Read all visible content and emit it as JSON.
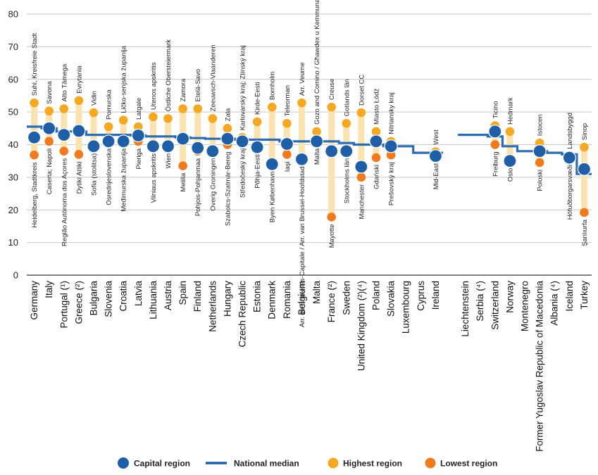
{
  "chart_data": {
    "type": "scatter",
    "ylim": [
      0,
      80
    ],
    "yticks": [
      0,
      10,
      20,
      30,
      40,
      50,
      60,
      70,
      80
    ],
    "grid": true,
    "legend": [
      {
        "key": "capital",
        "label": "Capital region",
        "color": "#1f5fa8"
      },
      {
        "key": "median",
        "label": "National median",
        "color": "#1f5fa8"
      },
      {
        "key": "highest",
        "label": "Highest region",
        "color": "#f7a823"
      },
      {
        "key": "lowest",
        "label": "Lowest region",
        "color": "#ef7b1e"
      }
    ],
    "colors": {
      "capital": "#1f5fa8",
      "median": "#2b6cb3",
      "highest": "#f7a823",
      "lowest": "#ef7b1e",
      "range": "#fbe3b0",
      "grid": "#c9c9c9"
    },
    "countries": [
      {
        "name": "Germany",
        "capital": 42.2,
        "median": 45.5,
        "high": 52.8,
        "low": 36.8,
        "high_label": "Suhl, Kreisfreie Stadt",
        "low_label": "Heidelberg, Stadtkreis"
      },
      {
        "name": "Italy",
        "capital": 45.0,
        "median": 45.0,
        "high": 50.3,
        "low": 41.0,
        "high_label": "Savona",
        "low_label": "Caserta; Napoli"
      },
      {
        "name": "Portugal (¹)",
        "capital": 43.0,
        "median": 44.0,
        "high": 51.0,
        "low": 38.0,
        "high_label": "Alto Tâmega",
        "low_label": "Região Autónoma dos Açores"
      },
      {
        "name": "Greece (²)",
        "capital": 44.2,
        "median": 44.0,
        "high": 53.5,
        "low": 37.0,
        "high_label": "Evrytania",
        "low_label": "Dytiki Attiki"
      },
      {
        "name": "Bulgaria",
        "capital": 39.5,
        "median": 43.0,
        "high": 49.8,
        "low": 39.5,
        "high_label": "Vidin",
        "low_label": "Sofia (stolitsa)"
      },
      {
        "name": "Slovenia",
        "capital": 41.0,
        "median": 43.0,
        "high": 45.5,
        "low": 41.0,
        "high_label": "Pomurska",
        "low_label": "Osrednjeslovenska"
      },
      {
        "name": "Croatia",
        "capital": 41.0,
        "median": 43.0,
        "high": 47.5,
        "low": 41.0,
        "high_label": "Ličko-senjska županija",
        "low_label": "Međimurska županija"
      },
      {
        "name": "Latvia",
        "capital": 42.8,
        "median": 42.8,
        "high": 45.5,
        "low": 41.0,
        "high_label": "Latgale",
        "low_label": "Pieriga"
      },
      {
        "name": "Lithuania",
        "capital": 39.5,
        "median": 42.5,
        "high": 48.5,
        "low": 39.5,
        "high_label": "Utenos apskritis",
        "low_label": "Vilniaus apskritis"
      },
      {
        "name": "Austria",
        "capital": 39.5,
        "median": 42.5,
        "high": 48.0,
        "low": 39.5,
        "high_label": "Östliche Obersteiermark",
        "low_label": "Wien"
      },
      {
        "name": "Spain",
        "capital": 41.8,
        "median": 42.2,
        "high": 51.0,
        "low": 33.5,
        "high_label": "Zamora",
        "low_label": "Melilla"
      },
      {
        "name": "Finland",
        "capital": 39.0,
        "median": 42.0,
        "high": 51.0,
        "low": 38.0,
        "high_label": "Etelä-Savo",
        "low_label": "Pohjois-Pohjanmaa"
      },
      {
        "name": "Netherlands",
        "capital": 38.0,
        "median": 41.8,
        "high": 48.0,
        "low": 38.0,
        "high_label": "Zeeuwsch-Vlaanderen",
        "low_label": "Overig Groningen"
      },
      {
        "name": "Hungary",
        "capital": 41.8,
        "median": 41.8,
        "high": 45.0,
        "low": 40.0,
        "high_label": "Zala",
        "low_label": "Szabolcs-Szatmár-Bereg"
      },
      {
        "name": "Czech Republic",
        "capital": 41.0,
        "median": 41.5,
        "high": 42.2,
        "low": 41.0,
        "high_label": "Karlovarský kraj; Zlínský kraj",
        "low_label": "Středočeský kraj"
      },
      {
        "name": "Estonia",
        "capital": 39.2,
        "median": 41.5,
        "high": 47.0,
        "low": 39.2,
        "high_label": "Kirde-Eesti",
        "low_label": "Põhja-Eesti"
      },
      {
        "name": "Denmark",
        "capital": 34.0,
        "median": 41.5,
        "high": 51.5,
        "low": 34.0,
        "high_label": "Bornholm",
        "low_label": "Byen København"
      },
      {
        "name": "Romania",
        "capital": 40.2,
        "median": 41.0,
        "high": 46.5,
        "low": 37.0,
        "high_label": "Teleorman",
        "low_label": "Iaşi"
      },
      {
        "name": "Belgium",
        "capital": 35.5,
        "median": 41.0,
        "high": 52.8,
        "low": 35.5,
        "high_label": "Arr. Veurne",
        "low_label": "Arr. de Bruxelles-Capitale / Arr. van Brussel-Hoofdstad"
      },
      {
        "name": "Malta",
        "capital": 41.0,
        "median": 41.0,
        "high": 44.0,
        "low": 41.0,
        "high_label": "Gozo and Comino / Għawdex u Kemmuna",
        "low_label": "Malta"
      },
      {
        "name": "France (²)",
        "capital": 38.0,
        "median": 41.0,
        "high": 51.5,
        "low": 17.8,
        "high_label": "Creuse",
        "low_label": "Mayotte"
      },
      {
        "name": "Sweden",
        "capital": 38.0,
        "median": 40.5,
        "high": 46.5,
        "low": 38.0,
        "high_label": "Gotlands län",
        "low_label": "Stockholms län"
      },
      {
        "name": "United Kingdom (²)(⁴)",
        "capital": 33.2,
        "median": 40.0,
        "high": 49.8,
        "low": 30.0,
        "high_label": "Dorset CC",
        "low_label": "Manchester"
      },
      {
        "name": "Poland",
        "capital": 41.0,
        "median": 40.0,
        "high": 44.0,
        "low": 36.0,
        "high_label": "Miasto Łódź",
        "low_label": "Gdański"
      },
      {
        "name": "Slovakia",
        "capital": 39.5,
        "median": 39.5,
        "high": 41.0,
        "low": 36.8,
        "high_label": "Nitriansky kraj",
        "low_label": "Prešovský kraj"
      },
      {
        "name": "Luxembourg",
        "median": 39.5
      },
      {
        "name": "Cyprus",
        "median": 37.5
      },
      {
        "name": "Ireland",
        "capital": 36.5,
        "median": 37.5,
        "high": 37.8,
        "low": 36.5,
        "high_label": "West",
        "low_label": "Mid-East"
      },
      {
        "name": "",
        "gap": true
      },
      {
        "name": "Liechtenstein",
        "median": 43.0
      },
      {
        "name": "Serbia (⁴)",
        "median": 43.0
      },
      {
        "name": "Switzerland",
        "capital": 44.0,
        "median": 42.5,
        "high": 45.8,
        "low": 40.0,
        "high_label": "Ticino",
        "low_label": "Freiburg"
      },
      {
        "name": "Norway",
        "capital": 35.0,
        "median": 39.5,
        "high": 44.0,
        "low": 35.0,
        "high_label": "Hedmark",
        "low_label": "Oslo"
      },
      {
        "name": "Montenegro",
        "median": 38.0
      },
      {
        "name": "Former Yugoslav Republic of Macedonia",
        "capital": 38.0,
        "median": 38.0,
        "high": 40.5,
        "low": 34.5,
        "high_label": "Istocen",
        "low_label": "Poloski"
      },
      {
        "name": "Albania (⁴)",
        "median": 37.5
      },
      {
        "name": "Iceland",
        "capital": 36.0,
        "median": 37.0,
        "high": 36.5,
        "low": 36.0,
        "high_label": "Landsbyggd",
        "low_label": "Höfuðborgarsvæði"
      },
      {
        "name": "Turkey",
        "capital": 32.5,
        "median": 31.0,
        "high": 39.2,
        "low": 19.2,
        "high_label": "Sinop",
        "low_label": "Şanlıurfa"
      }
    ]
  }
}
